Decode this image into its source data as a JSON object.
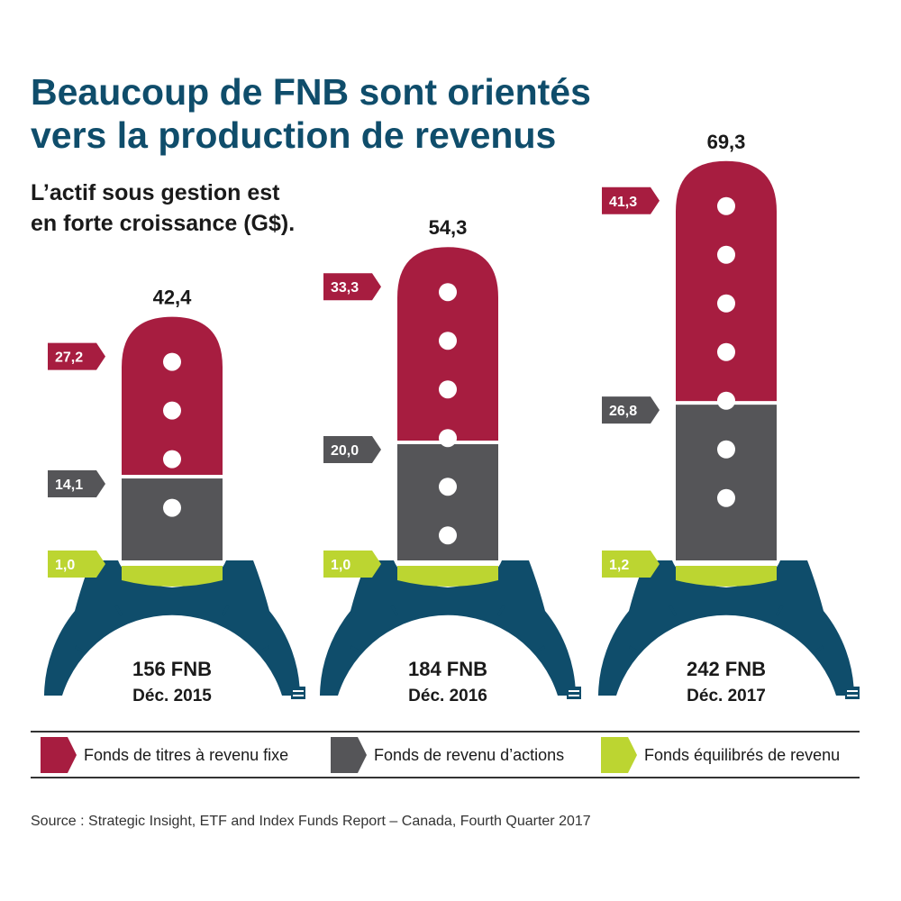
{
  "title_lines": [
    "Beaucoup de FNB sont orientés",
    "vers la production de revenus"
  ],
  "subtitle_lines": [
    "L’actif sous gestion est",
    "en forte croissance (G$)."
  ],
  "colors": {
    "fixed_income": "#a71d40",
    "equity_income": "#555558",
    "balanced": "#bcd531",
    "watch_case": "#0f4d6b",
    "title": "#0f4d6b"
  },
  "chart_data": {
    "type": "bar",
    "stacked": true,
    "categories": [
      "Déc. 2015",
      "Déc. 2016",
      "Déc. 2017"
    ],
    "category_captions": [
      "156 FNB",
      "184 FNB",
      "242 FNB"
    ],
    "totals": [
      42.4,
      54.3,
      69.3
    ],
    "total_labels": [
      "42,4",
      "54,3",
      "69,3"
    ],
    "series": [
      {
        "name": "Fonds équilibrés de revenu",
        "color": "#bcd531",
        "values": [
          1.0,
          1.0,
          1.2
        ],
        "labels": [
          "1,0",
          "1,0",
          "1,2"
        ]
      },
      {
        "name": "Fonds de revenu d’actions",
        "color": "#555558",
        "values": [
          14.1,
          20.0,
          26.8
        ],
        "labels": [
          "14,1",
          "20,0",
          "26,8"
        ]
      },
      {
        "name": "Fonds de titres à revenu fixe",
        "color": "#a71d40",
        "values": [
          27.2,
          33.3,
          41.3
        ],
        "labels": [
          "27,2",
          "33,3",
          "41,3"
        ]
      }
    ]
  },
  "legend": [
    {
      "label": "Fonds de titres à revenu fixe",
      "color": "#a71d40"
    },
    {
      "label": "Fonds de revenu d’actions",
      "color": "#555558"
    },
    {
      "label": "Fonds équilibrés de revenu",
      "color": "#bcd531"
    }
  ],
  "source": "Source : Strategic Insight, ETF and Index Funds Report – Canada, Fourth Quarter 2017"
}
